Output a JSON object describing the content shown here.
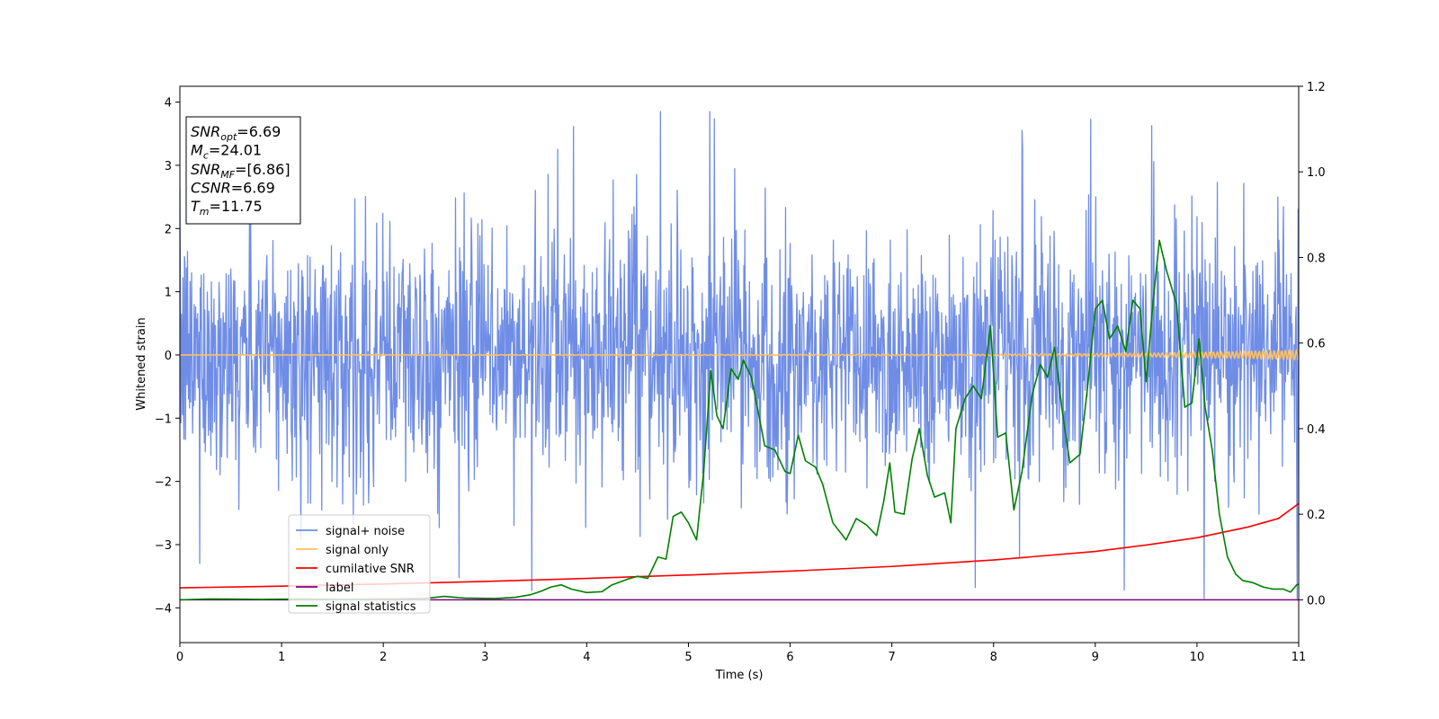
{
  "chart_data": {
    "type": "line",
    "title": "",
    "xlabel": "Time (s)",
    "ylabel": "Whitened strain",
    "xlim": [
      0,
      11
    ],
    "ylim": [
      -4.55,
      4.25
    ],
    "y2lim": [
      -0.1,
      1.2
    ],
    "x_ticks": [
      0,
      1,
      2,
      3,
      4,
      5,
      6,
      7,
      8,
      9,
      10,
      11
    ],
    "y_ticks": [
      -4,
      -3,
      -2,
      -1,
      0,
      1,
      2,
      3,
      4
    ],
    "y2_ticks": [
      0.0,
      0.2,
      0.4,
      0.6,
      0.8,
      1.0,
      1.2
    ],
    "x_tick_labels": [
      "0",
      "1",
      "2",
      "3",
      "4",
      "5",
      "6",
      "7",
      "8",
      "9",
      "10",
      "11"
    ],
    "y_tick_labels": [
      "−4",
      "−3",
      "−2",
      "−1",
      "0",
      "1",
      "2",
      "3",
      "4"
    ],
    "y2_tick_labels": [
      "0.0",
      "0.2",
      "0.4",
      "0.6",
      "0.8",
      "1.0",
      "1.2"
    ],
    "grid": false,
    "legend_position": "lower-left",
    "annotation": {
      "lines": [
        {
          "main": "SNR",
          "sub": "opt",
          "rest": "=6.69"
        },
        {
          "main": "M",
          "sub": "c",
          "rest": "=24.01"
        },
        {
          "main": "SNR",
          "sub": "MF",
          "rest": "=[6.86]"
        },
        {
          "main": "CSNR",
          "sub": "",
          "rest": "=6.69"
        },
        {
          "main": "T",
          "sub": "m",
          "rest": "=11.75"
        }
      ]
    },
    "series": [
      {
        "name": "signal+ noise",
        "color": "#6f8de6",
        "axis": "left",
        "kind": "noise",
        "x_range": [
          0,
          11
        ],
        "samples": 2200,
        "core_std": 0.95,
        "max_abs": 3.85
      },
      {
        "name": "signal only",
        "color": "#ffc060",
        "axis": "left",
        "kind": "chirp",
        "x_range": [
          0,
          11
        ],
        "points": [
          [
            0,
            0.0
          ],
          [
            8,
            0.01
          ],
          [
            9.5,
            0.03
          ],
          [
            10.5,
            0.06
          ],
          [
            11,
            0.08
          ]
        ]
      },
      {
        "name": "cumilative SNR",
        "color": "#ff0000",
        "axis": "right",
        "points": [
          [
            0,
            0.028
          ],
          [
            1,
            0.032
          ],
          [
            2,
            0.037
          ],
          [
            3,
            0.043
          ],
          [
            4,
            0.05
          ],
          [
            5,
            0.058
          ],
          [
            6,
            0.067
          ],
          [
            7,
            0.078
          ],
          [
            8,
            0.093
          ],
          [
            9,
            0.113
          ],
          [
            9.5,
            0.128
          ],
          [
            10,
            0.145
          ],
          [
            10.5,
            0.17
          ],
          [
            10.8,
            0.19
          ],
          [
            11,
            0.225
          ]
        ]
      },
      {
        "name": "label",
        "color": "#800080",
        "axis": "right",
        "points": [
          [
            0,
            0.0
          ],
          [
            11,
            0.0
          ]
        ]
      },
      {
        "name": "signal statistics",
        "color": "#008000",
        "axis": "right",
        "points": [
          [
            0,
            0.0
          ],
          [
            0.3,
            0.002
          ],
          [
            0.8,
            0.001
          ],
          [
            1.2,
            0.002
          ],
          [
            1.6,
            0.001
          ],
          [
            2.0,
            0.002
          ],
          [
            2.4,
            0.003
          ],
          [
            2.6,
            0.008
          ],
          [
            2.8,
            0.004
          ],
          [
            3.1,
            0.003
          ],
          [
            3.3,
            0.006
          ],
          [
            3.45,
            0.012
          ],
          [
            3.55,
            0.02
          ],
          [
            3.65,
            0.03
          ],
          [
            3.75,
            0.035
          ],
          [
            3.85,
            0.025
          ],
          [
            4.0,
            0.017
          ],
          [
            4.15,
            0.019
          ],
          [
            4.25,
            0.035
          ],
          [
            4.4,
            0.048
          ],
          [
            4.5,
            0.055
          ],
          [
            4.6,
            0.05
          ],
          [
            4.7,
            0.1
          ],
          [
            4.78,
            0.095
          ],
          [
            4.85,
            0.195
          ],
          [
            4.93,
            0.205
          ],
          [
            5.0,
            0.18
          ],
          [
            5.08,
            0.14
          ],
          [
            5.15,
            0.3
          ],
          [
            5.22,
            0.535
          ],
          [
            5.28,
            0.43
          ],
          [
            5.34,
            0.4
          ],
          [
            5.42,
            0.54
          ],
          [
            5.49,
            0.515
          ],
          [
            5.54,
            0.56
          ],
          [
            5.62,
            0.52
          ],
          [
            5.75,
            0.36
          ],
          [
            5.85,
            0.35
          ],
          [
            5.95,
            0.3
          ],
          [
            6.0,
            0.295
          ],
          [
            6.08,
            0.385
          ],
          [
            6.15,
            0.325
          ],
          [
            6.25,
            0.31
          ],
          [
            6.32,
            0.27
          ],
          [
            6.42,
            0.18
          ],
          [
            6.55,
            0.14
          ],
          [
            6.65,
            0.19
          ],
          [
            6.75,
            0.175
          ],
          [
            6.85,
            0.15
          ],
          [
            6.92,
            0.23
          ],
          [
            6.98,
            0.32
          ],
          [
            7.03,
            0.205
          ],
          [
            7.12,
            0.2
          ],
          [
            7.2,
            0.33
          ],
          [
            7.27,
            0.4
          ],
          [
            7.35,
            0.29
          ],
          [
            7.42,
            0.24
          ],
          [
            7.52,
            0.25
          ],
          [
            7.58,
            0.18
          ],
          [
            7.63,
            0.4
          ],
          [
            7.72,
            0.47
          ],
          [
            7.8,
            0.5
          ],
          [
            7.88,
            0.47
          ],
          [
            7.97,
            0.64
          ],
          [
            8.04,
            0.38
          ],
          [
            8.12,
            0.39
          ],
          [
            8.2,
            0.21
          ],
          [
            8.28,
            0.3
          ],
          [
            8.38,
            0.48
          ],
          [
            8.46,
            0.55
          ],
          [
            8.53,
            0.52
          ],
          [
            8.6,
            0.59
          ],
          [
            8.67,
            0.45
          ],
          [
            8.75,
            0.32
          ],
          [
            8.85,
            0.34
          ],
          [
            8.93,
            0.51
          ],
          [
            9.0,
            0.68
          ],
          [
            9.07,
            0.7
          ],
          [
            9.14,
            0.61
          ],
          [
            9.22,
            0.64
          ],
          [
            9.3,
            0.58
          ],
          [
            9.37,
            0.7
          ],
          [
            9.44,
            0.68
          ],
          [
            9.5,
            0.51
          ],
          [
            9.57,
            0.7
          ],
          [
            9.63,
            0.84
          ],
          [
            9.7,
            0.77
          ],
          [
            9.8,
            0.69
          ],
          [
            9.88,
            0.45
          ],
          [
            9.95,
            0.46
          ],
          [
            10.02,
            0.61
          ],
          [
            10.08,
            0.45
          ],
          [
            10.15,
            0.35
          ],
          [
            10.22,
            0.2
          ],
          [
            10.3,
            0.1
          ],
          [
            10.38,
            0.06
          ],
          [
            10.45,
            0.045
          ],
          [
            10.55,
            0.04
          ],
          [
            10.65,
            0.03
          ],
          [
            10.75,
            0.025
          ],
          [
            10.85,
            0.025
          ],
          [
            10.92,
            0.018
          ],
          [
            10.98,
            0.035
          ],
          [
            11.05,
            0.04
          ],
          [
            11.1,
            0.065
          ]
        ]
      }
    ]
  }
}
